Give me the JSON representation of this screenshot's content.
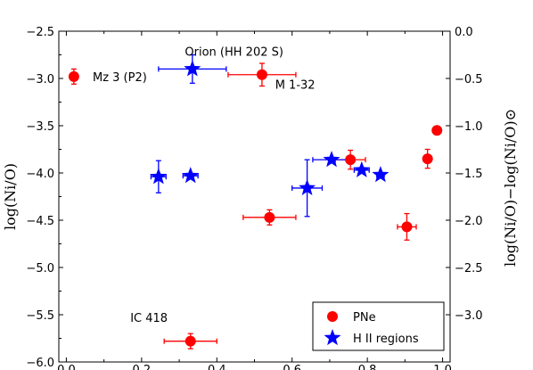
{
  "chart_data": {
    "type": "scatter",
    "xlim": [
      -0.02,
      1.02
    ],
    "ylim": [
      -6.0,
      -2.5
    ],
    "x_ticks": [
      "0.0",
      "0.2",
      "0.4",
      "0.6",
      "0.8",
      "1.0"
    ],
    "y_left_ticks": [
      "−2.5",
      "−3.0",
      "−3.5",
      "−4.0",
      "−4.5",
      "−5.0",
      "−5.5",
      "−6.0"
    ],
    "y_right_ticks": [
      "0.0",
      "−0.5",
      "−1.0",
      "−1.5",
      "−2.0",
      "−2.5",
      "−3.0"
    ],
    "ylabel_left": "log(Ni/O)",
    "ylabel_right": "log(Ni/O)−log(Ni/O)⊙",
    "legend_position": "lower-right",
    "series": [
      {
        "name": "PNe",
        "marker": "circle",
        "color": "#ff0000",
        "points": [
          {
            "x": 0.02,
            "y": -2.98,
            "xerr": 0.0,
            "yerr": 0.08
          },
          {
            "x": 0.52,
            "y": -2.96,
            "xerr": 0.09,
            "yerr": 0.12
          },
          {
            "x": 0.54,
            "y": -4.47,
            "xerr": 0.07,
            "yerr": 0.08
          },
          {
            "x": 0.33,
            "y": -5.78,
            "xerr": 0.07,
            "yerr": 0.08
          },
          {
            "x": 0.755,
            "y": -3.86,
            "xerr": 0.04,
            "yerr": 0.1
          },
          {
            "x": 0.905,
            "y": -4.57,
            "xerr": 0.025,
            "yerr": 0.14
          },
          {
            "x": 0.96,
            "y": -3.85,
            "xerr": 0.0,
            "yerr": 0.1
          },
          {
            "x": 0.985,
            "y": -3.55,
            "xerr": 0.0,
            "yerr": 0.04
          }
        ]
      },
      {
        "name": "H II regions",
        "marker": "star",
        "color": "#0000ff",
        "points": [
          {
            "x": 0.335,
            "y": -2.9,
            "xerr": 0.09,
            "yerr": 0.15
          },
          {
            "x": 0.245,
            "y": -4.04,
            "xerr": 0.02,
            "yerr": 0.17
          },
          {
            "x": 0.33,
            "y": -4.03,
            "xerr": 0.02,
            "yerr": 0.0
          },
          {
            "x": 0.64,
            "y": -4.16,
            "xerr": 0.04,
            "yerr": 0.3
          },
          {
            "x": 0.705,
            "y": -3.86,
            "xerr": 0.05,
            "yerr": 0.0
          },
          {
            "x": 0.785,
            "y": -3.97,
            "xerr": 0.02,
            "yerr": 0.0
          },
          {
            "x": 0.835,
            "y": -4.02,
            "xerr": 0.01,
            "yerr": 0.0
          }
        ]
      }
    ],
    "annotations": [
      {
        "text": "Orion (HH 202 S)",
        "x": 0.315,
        "y": -2.71
      },
      {
        "text": "Mz 3 (P2)",
        "x": 0.07,
        "y": -2.98
      },
      {
        "text": "M 1-32",
        "x": 0.555,
        "y": -3.06
      },
      {
        "text": "IC 418",
        "x": 0.17,
        "y": -5.53
      }
    ]
  }
}
